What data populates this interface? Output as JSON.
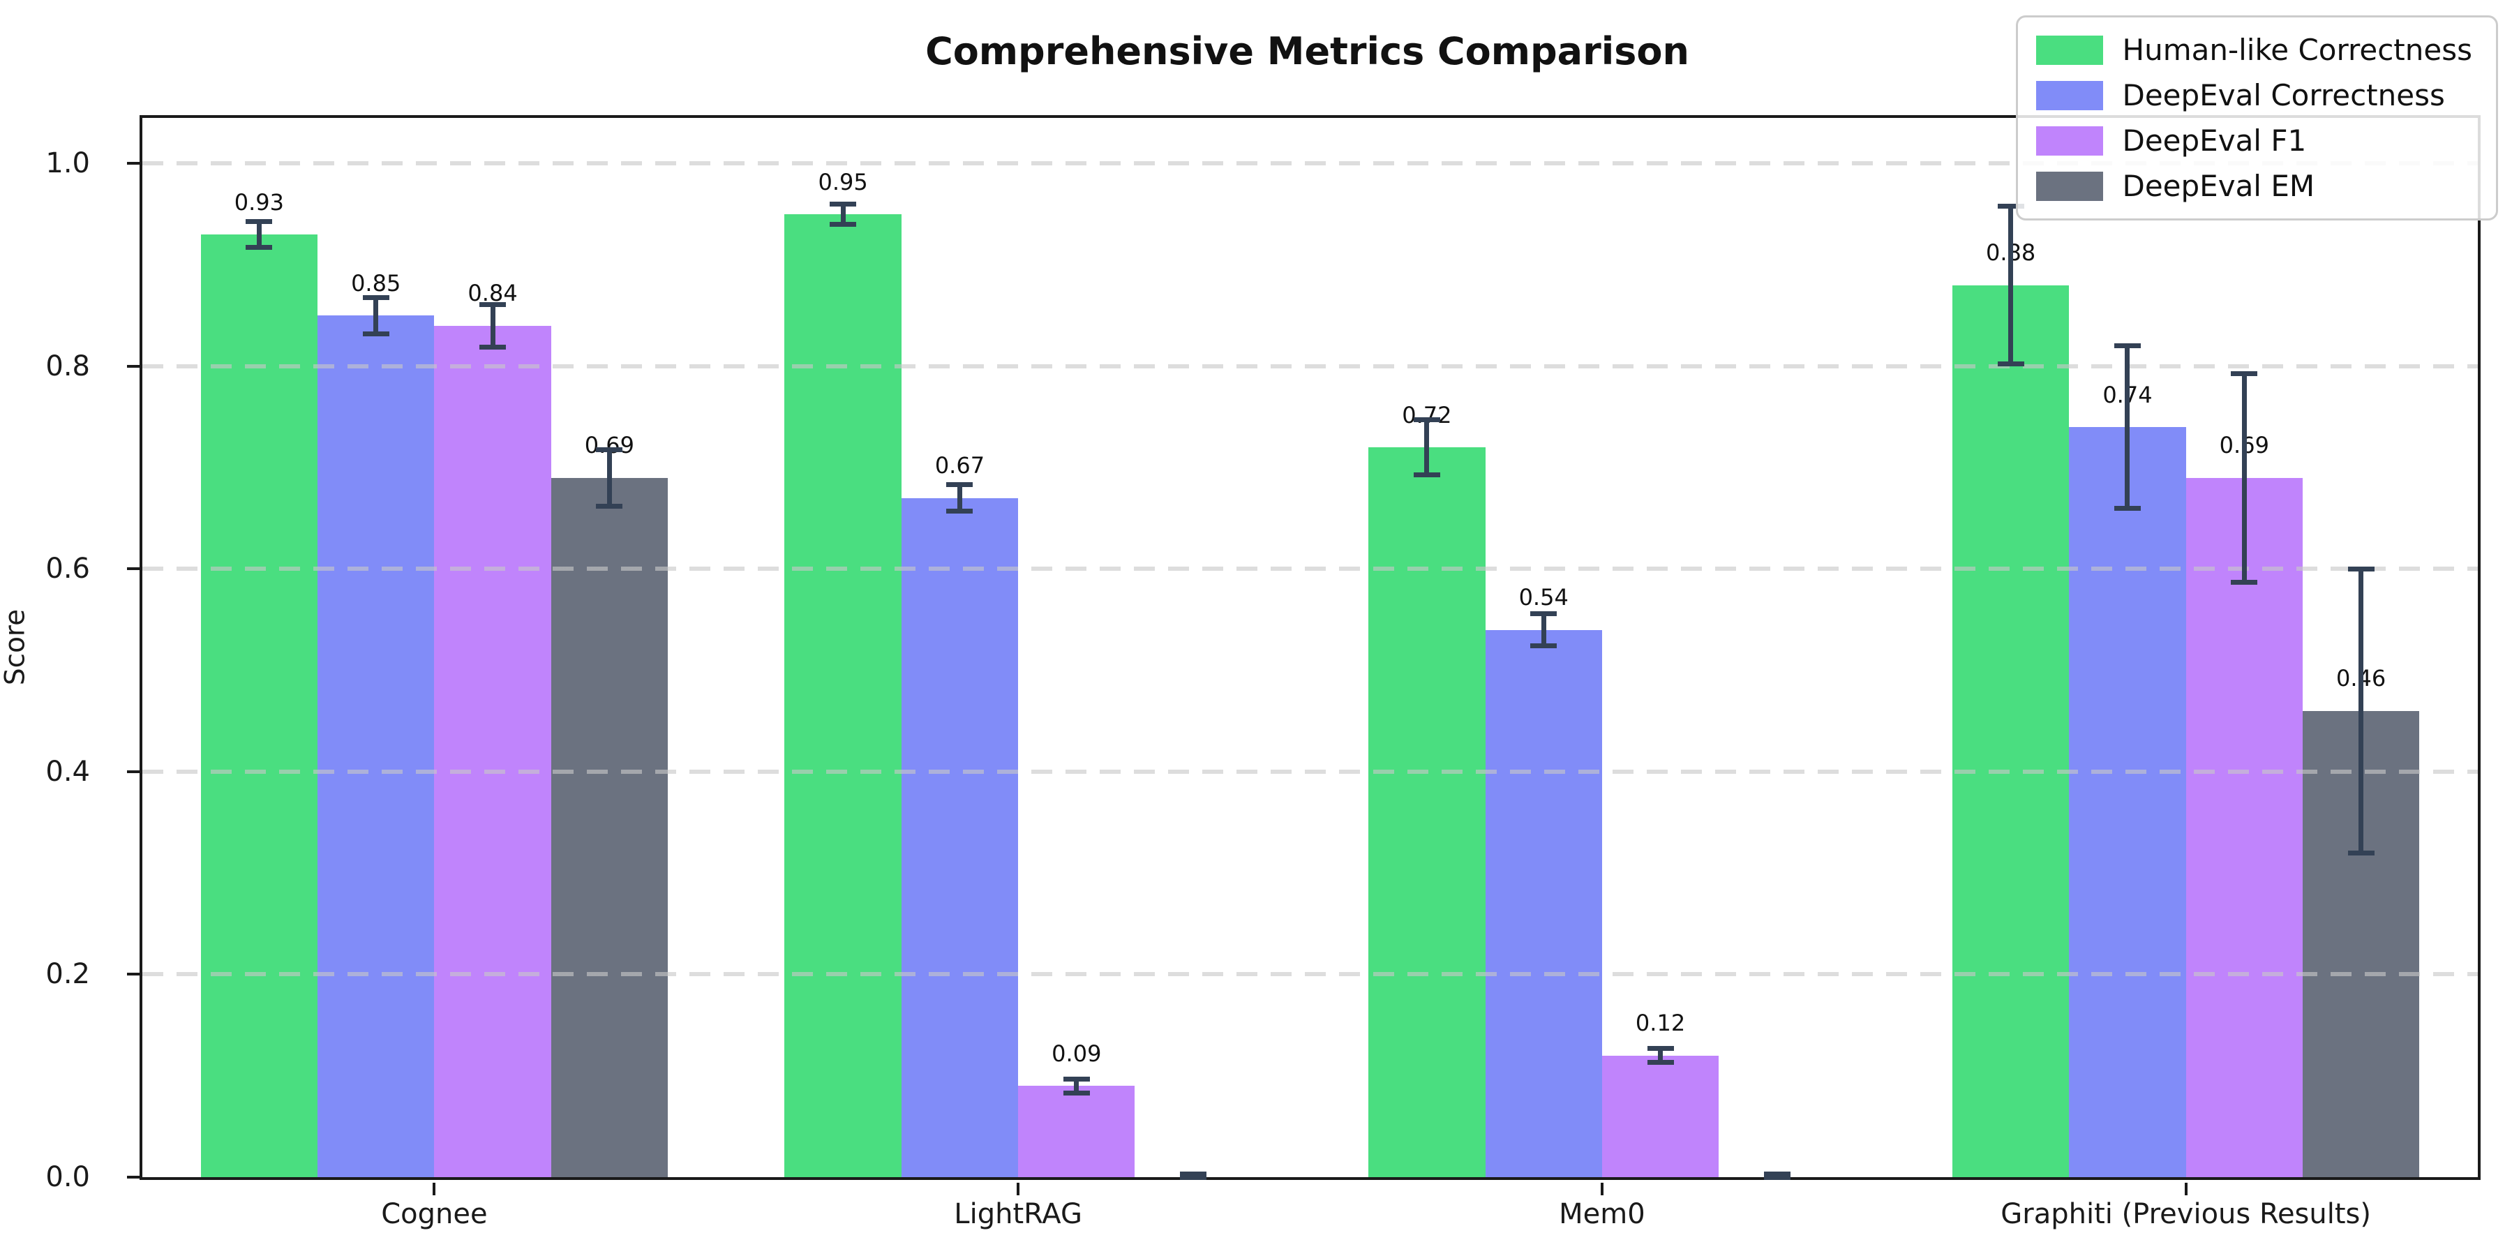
{
  "chart_data": {
    "type": "bar",
    "title": "Comprehensive Metrics Comparison",
    "xlabel": "",
    "ylabel": "Score",
    "categories": [
      "Cognee",
      "LightRAG",
      "Mem0",
      "Graphiti (Previous Results)"
    ],
    "series": [
      {
        "name": "Human-like Correctness",
        "color": "#4ade80",
        "values": [
          0.93,
          0.95,
          0.72,
          0.88
        ],
        "errors": [
          0.013,
          0.01,
          0.027,
          0.078
        ],
        "labels": [
          "0.93",
          "0.95",
          "0.72",
          "0.88"
        ]
      },
      {
        "name": "DeepEval Correctness",
        "color": "#818cf8",
        "values": [
          0.85,
          0.67,
          0.54,
          0.74
        ],
        "errors": [
          0.018,
          0.013,
          0.016,
          0.08
        ],
        "labels": [
          "0.85",
          "0.67",
          "0.54",
          "0.74"
        ]
      },
      {
        "name": "DeepEval F1",
        "color": "#c084fc",
        "values": [
          0.84,
          0.09,
          0.12,
          0.69
        ],
        "errors": [
          0.021,
          0.007,
          0.007,
          0.103
        ],
        "labels": [
          "0.84",
          "0.09",
          "0.12",
          "0.69"
        ]
      },
      {
        "name": "DeepEval EM",
        "color": "#6b7280",
        "values": [
          0.69,
          0.0,
          0.0,
          0.46
        ],
        "errors": [
          0.028,
          0.003,
          0.003,
          0.14
        ],
        "labels": [
          "0.69",
          "",
          "",
          "0.46"
        ]
      }
    ],
    "yticks": [
      "0.0",
      "0.2",
      "0.4",
      "0.6",
      "0.8",
      "1.0"
    ],
    "ylim": [
      0,
      1.045
    ],
    "grid": "horizontal-dashed-above-bars",
    "legend_position": "upper-right",
    "bar_width_fraction": 0.2,
    "error_bar_color": "#334155"
  }
}
